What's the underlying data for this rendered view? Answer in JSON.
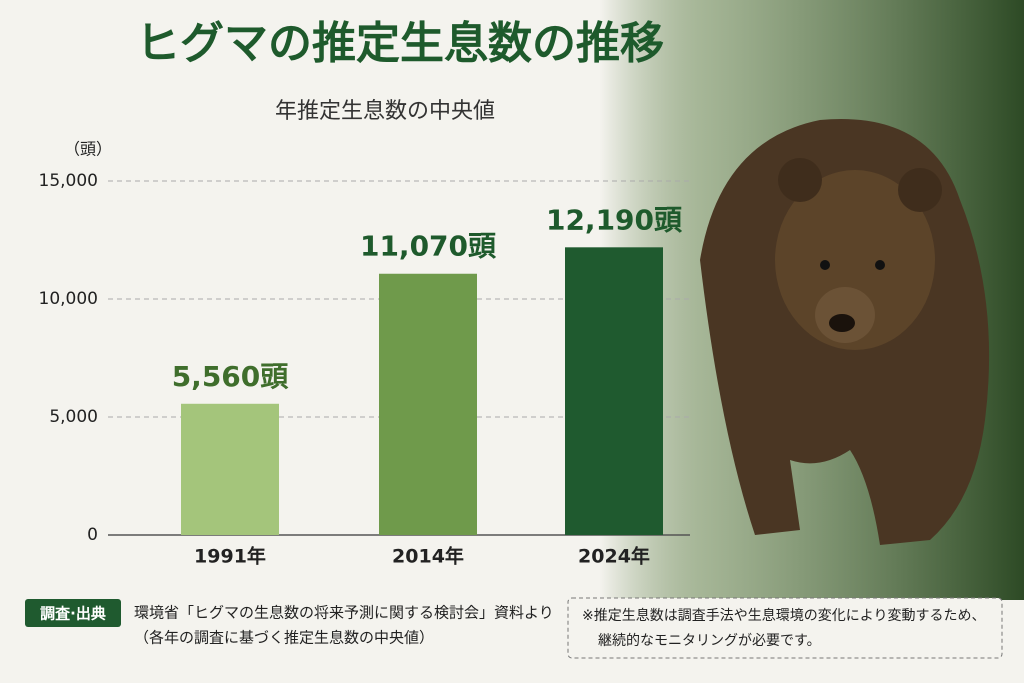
{
  "chart_data": {
    "type": "bar",
    "title": "ヒグマの推定生息数の推移",
    "subtitle": "年推定生息数の中央値",
    "y_label": "（頭）",
    "categories": [
      "1991年",
      "2014年",
      "2024年"
    ],
    "values": [
      5560,
      11070,
      12190
    ],
    "value_labels": [
      "5,560頭",
      "11,070頭",
      "12,190頭"
    ],
    "colors": [
      "#a4c57b",
      "#6f9a4b",
      "#1f5a2f"
    ],
    "ylim": [
      0,
      15000
    ],
    "yticks": [
      0,
      {
        "value": 5000,
        "label": "5,000"
      },
      {
        "value": 10000,
        "label": "10,000"
      },
      {
        "value": 15000,
        "label": "15,000"
      }
    ],
    "grid": true
  },
  "source": {
    "label": "調査·出典",
    "lines": [
      "環境省「ヒグマの生息数の将来予測に関する検討会」資料より",
      "（各年の調査に基づく推定生息数の中央値）"
    ]
  },
  "note": {
    "lines": [
      "※推定生息数は調査手法や生息環境の変化により変動するため、",
      "継続的なモニタリングが必要です。"
    ]
  }
}
